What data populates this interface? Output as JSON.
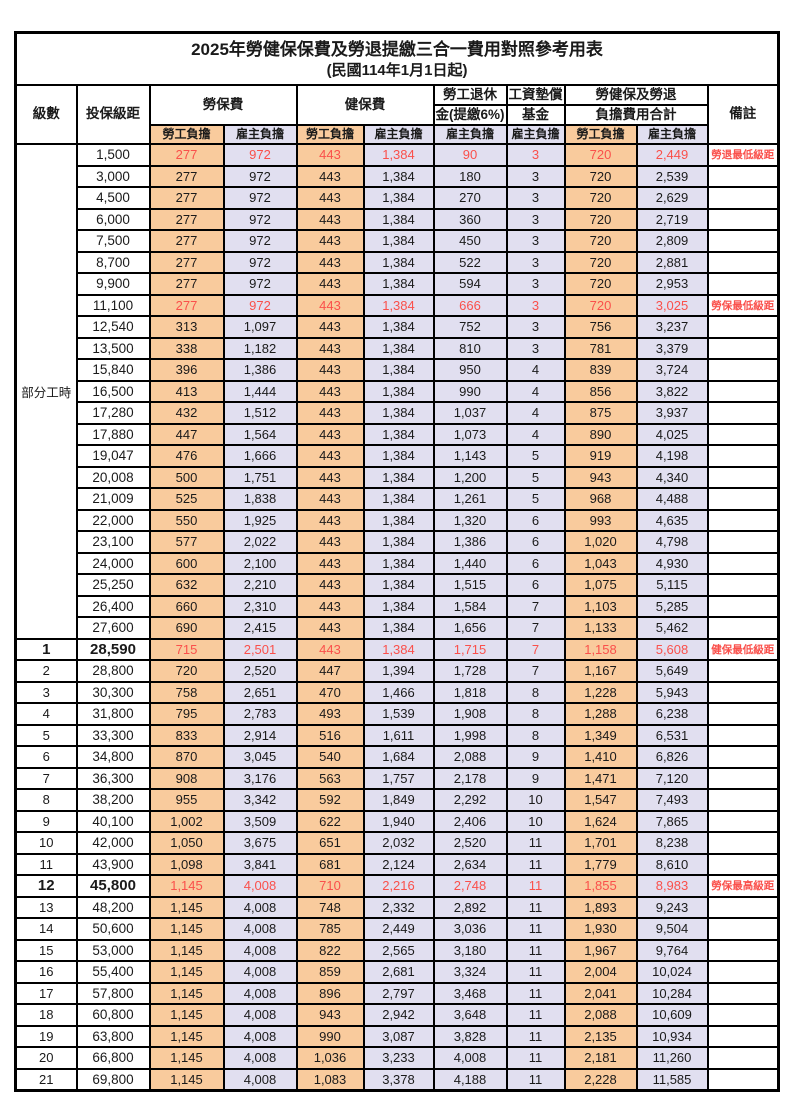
{
  "title": "2025年勞健保保費及勞退提繳三合一費用對照參考用表",
  "subtitle": "(民國114年1月1日起)",
  "colors": {
    "employee_col_bg": "#F9CB9D",
    "employer_col_bg": "#E1DFF0",
    "highlight_red": "#FA504B",
    "border": "#000000"
  },
  "header": {
    "level": "級數",
    "bracket": "投保級距",
    "labor_ins": "勞保費",
    "health_ins": "健保費",
    "pension_line1": "勞工退休",
    "pension_line2": "金(提繳6%)",
    "wage_fund_line1": "工資墊償",
    "wage_fund_line2": "基金",
    "total_line1": "勞健保及勞退",
    "total_line2": "負擔費用合計",
    "remark": "備註",
    "employee": "勞工負擔",
    "employer": "雇主負擔"
  },
  "part_time_label": "部分工時",
  "table": {
    "rows": [
      {
        "level": "",
        "bracket": "1,500",
        "v": [
          "277",
          "972",
          "443",
          "1,384",
          "90",
          "3",
          "720",
          "2,449"
        ],
        "remark": "勞退最低級距",
        "red": true
      },
      {
        "level": "",
        "bracket": "3,000",
        "v": [
          "277",
          "972",
          "443",
          "1,384",
          "180",
          "3",
          "720",
          "2,539"
        ],
        "remark": "",
        "red": false
      },
      {
        "level": "",
        "bracket": "4,500",
        "v": [
          "277",
          "972",
          "443",
          "1,384",
          "270",
          "3",
          "720",
          "2,629"
        ],
        "remark": "",
        "red": false
      },
      {
        "level": "",
        "bracket": "6,000",
        "v": [
          "277",
          "972",
          "443",
          "1,384",
          "360",
          "3",
          "720",
          "2,719"
        ],
        "remark": "",
        "red": false
      },
      {
        "level": "",
        "bracket": "7,500",
        "v": [
          "277",
          "972",
          "443",
          "1,384",
          "450",
          "3",
          "720",
          "2,809"
        ],
        "remark": "",
        "red": false
      },
      {
        "level": "",
        "bracket": "8,700",
        "v": [
          "277",
          "972",
          "443",
          "1,384",
          "522",
          "3",
          "720",
          "2,881"
        ],
        "remark": "",
        "red": false
      },
      {
        "level": "",
        "bracket": "9,900",
        "v": [
          "277",
          "972",
          "443",
          "1,384",
          "594",
          "3",
          "720",
          "2,953"
        ],
        "remark": "",
        "red": false
      },
      {
        "level": "",
        "bracket": "11,100",
        "v": [
          "277",
          "972",
          "443",
          "1,384",
          "666",
          "3",
          "720",
          "3,025"
        ],
        "remark": "勞保最低級距",
        "red": true
      },
      {
        "level": "",
        "bracket": "12,540",
        "v": [
          "313",
          "1,097",
          "443",
          "1,384",
          "752",
          "3",
          "756",
          "3,237"
        ],
        "remark": "",
        "red": false
      },
      {
        "level": "",
        "bracket": "13,500",
        "v": [
          "338",
          "1,182",
          "443",
          "1,384",
          "810",
          "3",
          "781",
          "3,379"
        ],
        "remark": "",
        "red": false
      },
      {
        "level": "",
        "bracket": "15,840",
        "v": [
          "396",
          "1,386",
          "443",
          "1,384",
          "950",
          "4",
          "839",
          "3,724"
        ],
        "remark": "",
        "red": false
      },
      {
        "level": "",
        "bracket": "16,500",
        "v": [
          "413",
          "1,444",
          "443",
          "1,384",
          "990",
          "4",
          "856",
          "3,822"
        ],
        "remark": "",
        "red": false
      },
      {
        "level": "",
        "bracket": "17,280",
        "v": [
          "432",
          "1,512",
          "443",
          "1,384",
          "1,037",
          "4",
          "875",
          "3,937"
        ],
        "remark": "",
        "red": false
      },
      {
        "level": "",
        "bracket": "17,880",
        "v": [
          "447",
          "1,564",
          "443",
          "1,384",
          "1,073",
          "4",
          "890",
          "4,025"
        ],
        "remark": "",
        "red": false
      },
      {
        "level": "",
        "bracket": "19,047",
        "v": [
          "476",
          "1,666",
          "443",
          "1,384",
          "1,143",
          "5",
          "919",
          "4,198"
        ],
        "remark": "",
        "red": false
      },
      {
        "level": "",
        "bracket": "20,008",
        "v": [
          "500",
          "1,751",
          "443",
          "1,384",
          "1,200",
          "5",
          "943",
          "4,340"
        ],
        "remark": "",
        "red": false
      },
      {
        "level": "",
        "bracket": "21,009",
        "v": [
          "525",
          "1,838",
          "443",
          "1,384",
          "1,261",
          "5",
          "968",
          "4,488"
        ],
        "remark": "",
        "red": false
      },
      {
        "level": "",
        "bracket": "22,000",
        "v": [
          "550",
          "1,925",
          "443",
          "1,384",
          "1,320",
          "6",
          "993",
          "4,635"
        ],
        "remark": "",
        "red": false
      },
      {
        "level": "",
        "bracket": "23,100",
        "v": [
          "577",
          "2,022",
          "443",
          "1,384",
          "1,386",
          "6",
          "1,020",
          "4,798"
        ],
        "remark": "",
        "red": false
      },
      {
        "level": "",
        "bracket": "24,000",
        "v": [
          "600",
          "2,100",
          "443",
          "1,384",
          "1,440",
          "6",
          "1,043",
          "4,930"
        ],
        "remark": "",
        "red": false
      },
      {
        "level": "",
        "bracket": "25,250",
        "v": [
          "632",
          "2,210",
          "443",
          "1,384",
          "1,515",
          "6",
          "1,075",
          "5,115"
        ],
        "remark": "",
        "red": false
      },
      {
        "level": "",
        "bracket": "26,400",
        "v": [
          "660",
          "2,310",
          "443",
          "1,384",
          "1,584",
          "7",
          "1,103",
          "5,285"
        ],
        "remark": "",
        "red": false
      },
      {
        "level": "",
        "bracket": "27,600",
        "v": [
          "690",
          "2,415",
          "443",
          "1,384",
          "1,656",
          "7",
          "1,133",
          "5,462"
        ],
        "remark": "",
        "red": false
      },
      {
        "level": "1",
        "bracket": "28,590",
        "v": [
          "715",
          "2,501",
          "443",
          "1,384",
          "1,715",
          "7",
          "1,158",
          "5,608"
        ],
        "remark": "健保最低級距",
        "red": true,
        "hl": true
      },
      {
        "level": "2",
        "bracket": "28,800",
        "v": [
          "720",
          "2,520",
          "447",
          "1,394",
          "1,728",
          "7",
          "1,167",
          "5,649"
        ],
        "remark": "",
        "red": false
      },
      {
        "level": "3",
        "bracket": "30,300",
        "v": [
          "758",
          "2,651",
          "470",
          "1,466",
          "1,818",
          "8",
          "1,228",
          "5,943"
        ],
        "remark": "",
        "red": false
      },
      {
        "level": "4",
        "bracket": "31,800",
        "v": [
          "795",
          "2,783",
          "493",
          "1,539",
          "1,908",
          "8",
          "1,288",
          "6,238"
        ],
        "remark": "",
        "red": false
      },
      {
        "level": "5",
        "bracket": "33,300",
        "v": [
          "833",
          "2,914",
          "516",
          "1,611",
          "1,998",
          "8",
          "1,349",
          "6,531"
        ],
        "remark": "",
        "red": false
      },
      {
        "level": "6",
        "bracket": "34,800",
        "v": [
          "870",
          "3,045",
          "540",
          "1,684",
          "2,088",
          "9",
          "1,410",
          "6,826"
        ],
        "remark": "",
        "red": false
      },
      {
        "level": "7",
        "bracket": "36,300",
        "v": [
          "908",
          "3,176",
          "563",
          "1,757",
          "2,178",
          "9",
          "1,471",
          "7,120"
        ],
        "remark": "",
        "red": false
      },
      {
        "level": "8",
        "bracket": "38,200",
        "v": [
          "955",
          "3,342",
          "592",
          "1,849",
          "2,292",
          "10",
          "1,547",
          "7,493"
        ],
        "remark": "",
        "red": false
      },
      {
        "level": "9",
        "bracket": "40,100",
        "v": [
          "1,002",
          "3,509",
          "622",
          "1,940",
          "2,406",
          "10",
          "1,624",
          "7,865"
        ],
        "remark": "",
        "red": false
      },
      {
        "level": "10",
        "bracket": "42,000",
        "v": [
          "1,050",
          "3,675",
          "651",
          "2,032",
          "2,520",
          "11",
          "1,701",
          "8,238"
        ],
        "remark": "",
        "red": false
      },
      {
        "level": "11",
        "bracket": "43,900",
        "v": [
          "1,098",
          "3,841",
          "681",
          "2,124",
          "2,634",
          "11",
          "1,779",
          "8,610"
        ],
        "remark": "",
        "red": false
      },
      {
        "level": "12",
        "bracket": "45,800",
        "v": [
          "1,145",
          "4,008",
          "710",
          "2,216",
          "2,748",
          "11",
          "1,855",
          "8,983"
        ],
        "remark": "勞保最高級距",
        "red": true,
        "hl": true
      },
      {
        "level": "13",
        "bracket": "48,200",
        "v": [
          "1,145",
          "4,008",
          "748",
          "2,332",
          "2,892",
          "11",
          "1,893",
          "9,243"
        ],
        "remark": "",
        "red": false
      },
      {
        "level": "14",
        "bracket": "50,600",
        "v": [
          "1,145",
          "4,008",
          "785",
          "2,449",
          "3,036",
          "11",
          "1,930",
          "9,504"
        ],
        "remark": "",
        "red": false
      },
      {
        "level": "15",
        "bracket": "53,000",
        "v": [
          "1,145",
          "4,008",
          "822",
          "2,565",
          "3,180",
          "11",
          "1,967",
          "9,764"
        ],
        "remark": "",
        "red": false
      },
      {
        "level": "16",
        "bracket": "55,400",
        "v": [
          "1,145",
          "4,008",
          "859",
          "2,681",
          "3,324",
          "11",
          "2,004",
          "10,024"
        ],
        "remark": "",
        "red": false
      },
      {
        "level": "17",
        "bracket": "57,800",
        "v": [
          "1,145",
          "4,008",
          "896",
          "2,797",
          "3,468",
          "11",
          "2,041",
          "10,284"
        ],
        "remark": "",
        "red": false
      },
      {
        "level": "18",
        "bracket": "60,800",
        "v": [
          "1,145",
          "4,008",
          "943",
          "2,942",
          "3,648",
          "11",
          "2,088",
          "10,609"
        ],
        "remark": "",
        "red": false
      },
      {
        "level": "19",
        "bracket": "63,800",
        "v": [
          "1,145",
          "4,008",
          "990",
          "3,087",
          "3,828",
          "11",
          "2,135",
          "10,934"
        ],
        "remark": "",
        "red": false
      },
      {
        "level": "20",
        "bracket": "66,800",
        "v": [
          "1,145",
          "4,008",
          "1,036",
          "3,233",
          "4,008",
          "11",
          "2,181",
          "11,260"
        ],
        "remark": "",
        "red": false
      },
      {
        "level": "21",
        "bracket": "69,800",
        "v": [
          "1,145",
          "4,008",
          "1,083",
          "3,378",
          "4,188",
          "11",
          "2,228",
          "11,585"
        ],
        "remark": "",
        "red": false
      }
    ],
    "part_time_row_span": 23,
    "value_column_styles": [
      "emp",
      "er",
      "emp",
      "er",
      "er",
      "er",
      "emp",
      "er"
    ]
  }
}
